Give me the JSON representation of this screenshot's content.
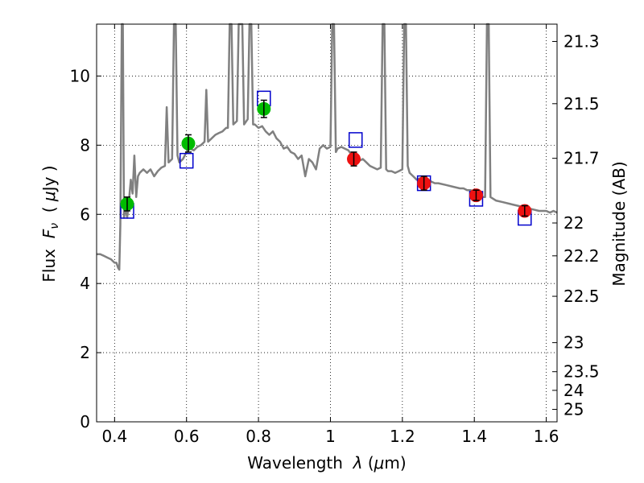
{
  "chart_data": {
    "type": "line",
    "xlabel_parts": [
      "Wavelength  ",
      "λ",
      " (",
      "μ",
      "m)"
    ],
    "ylabel_parts": [
      "Flux  ",
      "F",
      "ν",
      "  ( ",
      "μ",
      "Jy )"
    ],
    "y2label": "Magnitude (AB)",
    "xlim": [
      0.35,
      1.63
    ],
    "ylim": [
      0,
      11.5
    ],
    "xticks": [
      0.4,
      0.6,
      0.8,
      1.0,
      1.2,
      1.4,
      1.6
    ],
    "xtick_labels": [
      "0.4",
      "0.6",
      "0.8",
      "1",
      "1.2",
      "1.4",
      "1.6"
    ],
    "yticks": [
      0,
      2,
      4,
      6,
      8,
      10
    ],
    "ytick_labels": [
      "0",
      "2",
      "4",
      "6",
      "8",
      "10"
    ],
    "y2ticks": [
      {
        "label": "21.3",
        "flux": 11.0
      },
      {
        "label": "21.5",
        "flux": 9.2
      },
      {
        "label": "21.7",
        "flux": 7.62
      },
      {
        "label": "22",
        "flux": 5.75
      },
      {
        "label": "22.2",
        "flux": 4.8
      },
      {
        "label": "22.5",
        "flux": 3.63
      },
      {
        "label": "23",
        "flux": 2.29
      },
      {
        "label": "23.5",
        "flux": 1.45
      },
      {
        "label": "24",
        "flux": 0.91
      },
      {
        "label": "25",
        "flux": 0.36
      }
    ],
    "grid": true,
    "colors": {
      "spectrum": "#808080",
      "green_points": "#00bb00",
      "red_points": "#ee1111",
      "model_boxes": "#0000cc",
      "errorbars": "#000000"
    },
    "series": [
      {
        "kind": "spectrum",
        "points": [
          [
            0.35,
            4.85
          ],
          [
            0.36,
            4.85
          ],
          [
            0.37,
            4.8
          ],
          [
            0.38,
            4.75
          ],
          [
            0.39,
            4.7
          ],
          [
            0.4,
            4.6
          ],
          [
            0.405,
            4.6
          ],
          [
            0.41,
            4.45
          ],
          [
            0.413,
            4.4
          ],
          [
            0.416,
            5.7
          ],
          [
            0.42,
            11.5
          ],
          [
            0.423,
            11.5
          ],
          [
            0.426,
            5.9
          ],
          [
            0.43,
            6.2
          ],
          [
            0.435,
            5.9
          ],
          [
            0.44,
            6.4
          ],
          [
            0.445,
            7.0
          ],
          [
            0.45,
            6.6
          ],
          [
            0.455,
            7.7
          ],
          [
            0.46,
            6.5
          ],
          [
            0.465,
            7.1
          ],
          [
            0.47,
            7.2
          ],
          [
            0.48,
            7.3
          ],
          [
            0.49,
            7.2
          ],
          [
            0.5,
            7.3
          ],
          [
            0.51,
            7.1
          ],
          [
            0.52,
            7.25
          ],
          [
            0.53,
            7.35
          ],
          [
            0.54,
            7.4
          ],
          [
            0.545,
            9.1
          ],
          [
            0.55,
            7.5
          ],
          [
            0.56,
            7.6
          ],
          [
            0.565,
            11.5
          ],
          [
            0.57,
            11.5
          ],
          [
            0.575,
            7.7
          ],
          [
            0.58,
            7.5
          ],
          [
            0.59,
            7.6
          ],
          [
            0.6,
            7.8
          ],
          [
            0.61,
            7.9
          ],
          [
            0.62,
            7.85
          ],
          [
            0.63,
            7.95
          ],
          [
            0.64,
            8.0
          ],
          [
            0.65,
            8.1
          ],
          [
            0.655,
            9.6
          ],
          [
            0.66,
            8.1
          ],
          [
            0.67,
            8.2
          ],
          [
            0.68,
            8.3
          ],
          [
            0.69,
            8.35
          ],
          [
            0.7,
            8.4
          ],
          [
            0.71,
            8.5
          ],
          [
            0.715,
            8.5
          ],
          [
            0.72,
            11.5
          ],
          [
            0.725,
            11.5
          ],
          [
            0.73,
            8.6
          ],
          [
            0.74,
            8.7
          ],
          [
            0.745,
            11.5
          ],
          [
            0.755,
            11.5
          ],
          [
            0.76,
            8.6
          ],
          [
            0.77,
            8.75
          ],
          [
            0.775,
            11.5
          ],
          [
            0.78,
            11.5
          ],
          [
            0.785,
            8.6
          ],
          [
            0.79,
            8.6
          ],
          [
            0.8,
            8.5
          ],
          [
            0.81,
            8.55
          ],
          [
            0.82,
            8.4
          ],
          [
            0.83,
            8.3
          ],
          [
            0.84,
            8.4
          ],
          [
            0.85,
            8.2
          ],
          [
            0.86,
            8.1
          ],
          [
            0.87,
            7.9
          ],
          [
            0.88,
            7.95
          ],
          [
            0.89,
            7.8
          ],
          [
            0.9,
            7.75
          ],
          [
            0.91,
            7.6
          ],
          [
            0.92,
            7.7
          ],
          [
            0.93,
            7.1
          ],
          [
            0.94,
            7.6
          ],
          [
            0.95,
            7.5
          ],
          [
            0.96,
            7.3
          ],
          [
            0.97,
            7.9
          ],
          [
            0.98,
            8.0
          ],
          [
            0.99,
            7.9
          ],
          [
            1.0,
            7.95
          ],
          [
            1.005,
            11.5
          ],
          [
            1.01,
            11.5
          ],
          [
            1.015,
            7.8
          ],
          [
            1.02,
            7.9
          ],
          [
            1.03,
            7.95
          ],
          [
            1.04,
            7.9
          ],
          [
            1.05,
            7.85
          ],
          [
            1.06,
            7.7
          ],
          [
            1.07,
            7.5
          ],
          [
            1.08,
            7.55
          ],
          [
            1.09,
            7.6
          ],
          [
            1.1,
            7.5
          ],
          [
            1.11,
            7.4
          ],
          [
            1.12,
            7.35
          ],
          [
            1.13,
            7.3
          ],
          [
            1.14,
            7.35
          ],
          [
            1.145,
            11.5
          ],
          [
            1.15,
            11.5
          ],
          [
            1.155,
            7.3
          ],
          [
            1.16,
            7.25
          ],
          [
            1.17,
            7.25
          ],
          [
            1.18,
            7.2
          ],
          [
            1.19,
            7.25
          ],
          [
            1.2,
            7.3
          ],
          [
            1.205,
            11.5
          ],
          [
            1.21,
            11.5
          ],
          [
            1.215,
            7.4
          ],
          [
            1.22,
            7.2
          ],
          [
            1.23,
            7.1
          ],
          [
            1.24,
            7.0
          ],
          [
            1.25,
            7.05
          ],
          [
            1.26,
            6.9
          ],
          [
            1.27,
            7.0
          ],
          [
            1.28,
            6.95
          ],
          [
            1.29,
            6.9
          ],
          [
            1.3,
            6.9
          ],
          [
            1.32,
            6.85
          ],
          [
            1.34,
            6.8
          ],
          [
            1.36,
            6.75
          ],
          [
            1.37,
            6.75
          ],
          [
            1.38,
            6.7
          ],
          [
            1.39,
            6.7
          ],
          [
            1.4,
            6.65
          ],
          [
            1.41,
            6.55
          ],
          [
            1.42,
            6.5
          ],
          [
            1.43,
            6.5
          ],
          [
            1.435,
            11.5
          ],
          [
            1.44,
            11.5
          ],
          [
            1.445,
            6.5
          ],
          [
            1.46,
            6.4
          ],
          [
            1.48,
            6.35
          ],
          [
            1.5,
            6.3
          ],
          [
            1.52,
            6.25
          ],
          [
            1.54,
            6.2
          ],
          [
            1.56,
            6.15
          ],
          [
            1.58,
            6.1
          ],
          [
            1.6,
            6.1
          ],
          [
            1.61,
            6.05
          ],
          [
            1.62,
            6.1
          ],
          [
            1.63,
            6.05
          ]
        ]
      },
      {
        "kind": "green_points",
        "points": [
          {
            "x": 0.435,
            "y": 6.3,
            "err": 0.2
          },
          {
            "x": 0.605,
            "y": 8.05,
            "err": 0.25
          },
          {
            "x": 0.815,
            "y": 9.05,
            "err": 0.25
          }
        ]
      },
      {
        "kind": "red_points",
        "points": [
          {
            "x": 1.065,
            "y": 7.6,
            "err": 0.2
          },
          {
            "x": 1.26,
            "y": 6.9,
            "err": 0.2
          },
          {
            "x": 1.405,
            "y": 6.55,
            "err": 0.15
          },
          {
            "x": 1.54,
            "y": 6.1,
            "err": 0.15
          }
        ]
      },
      {
        "kind": "model_boxes",
        "points": [
          {
            "x": 0.435,
            "y": 6.1
          },
          {
            "x": 0.6,
            "y": 7.55
          },
          {
            "x": 0.815,
            "y": 9.35
          },
          {
            "x": 1.07,
            "y": 8.15
          },
          {
            "x": 1.26,
            "y": 6.9
          },
          {
            "x": 1.405,
            "y": 6.45
          },
          {
            "x": 1.54,
            "y": 5.9
          }
        ]
      }
    ]
  }
}
